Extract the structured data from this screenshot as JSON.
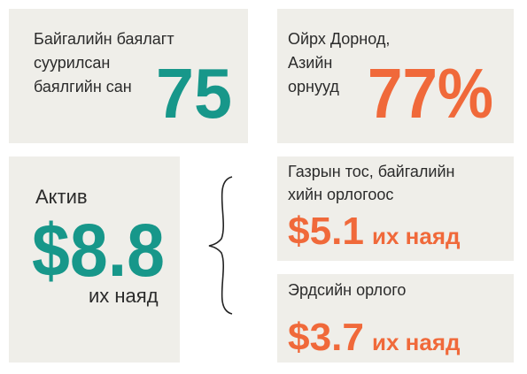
{
  "boxes": [
    {
      "label": [
        "Байгалийн баялагт",
        "суурилсан",
        "баялгийн сан"
      ],
      "figure": "75"
    },
    {
      "label": [
        "Ойрх Дорнод,",
        "Азийн",
        "орнууд"
      ],
      "figure": "77%"
    },
    {
      "label": [
        "Актив"
      ],
      "figure": "$8.8",
      "unit": "их наяд"
    },
    {
      "label": [
        "Газрын тос, байгалийн",
        "хийн орлогоос"
      ],
      "figure": "$5.1",
      "unit": "их наяд"
    },
    {
      "label": [
        "Эрдсийн орлого"
      ],
      "figure": "$3.7",
      "unit": "их наяд"
    }
  ]
}
